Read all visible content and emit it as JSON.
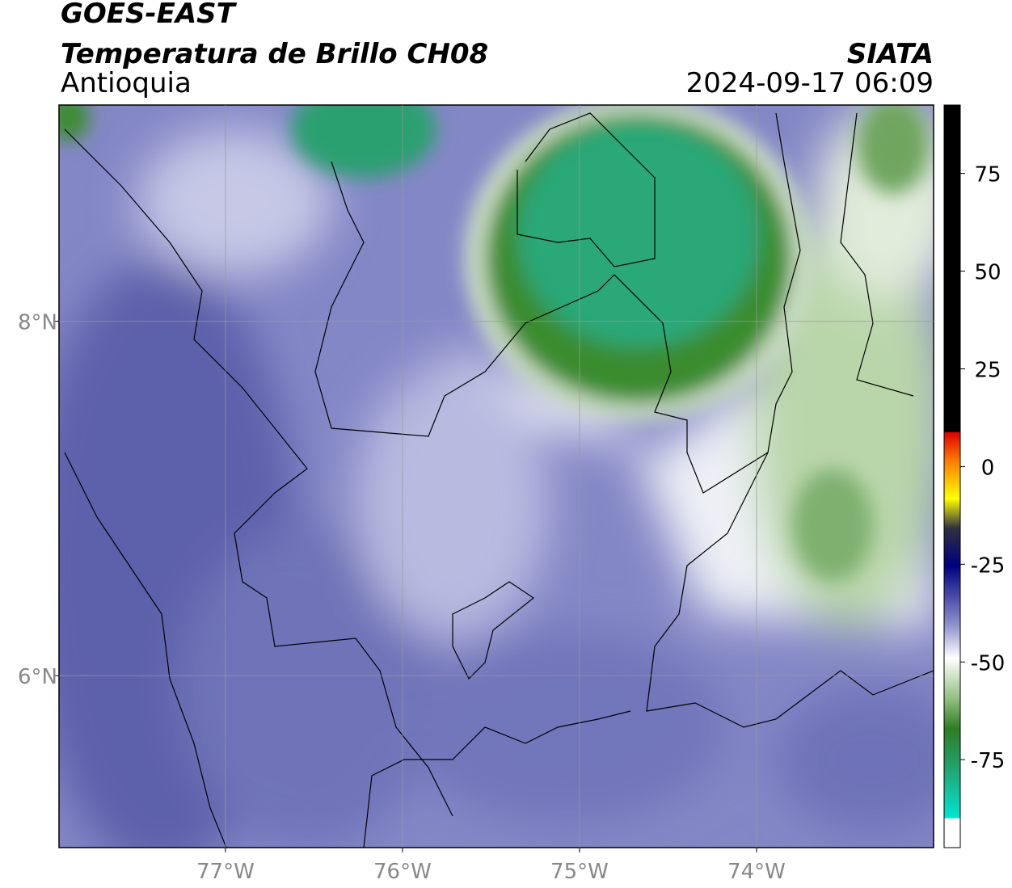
{
  "chart_data": {
    "type": "map",
    "title": "GOES-EAST",
    "subtitle": "Temperatura de Brillo CH08",
    "region": "Antioquia",
    "source": "SIATA",
    "timestamp": "2024-09-17 06:09",
    "xlim": [
      -77.94,
      -73.0
    ],
    "ylim": [
      5.03,
      9.22
    ],
    "xticks": [
      {
        "value": -77,
        "label": "77°W"
      },
      {
        "value": -76,
        "label": "76°W"
      },
      {
        "value": -75,
        "label": "75°W"
      },
      {
        "value": -74,
        "label": "74°W"
      }
    ],
    "yticks": [
      {
        "value": 6,
        "label": "6°N"
      },
      {
        "value": 8,
        "label": "8°N"
      }
    ],
    "grid": true,
    "colorbar": {
      "lim": [
        -97.5,
        92.5
      ],
      "ticks": [
        -75,
        -50,
        -25,
        0,
        25,
        50,
        75
      ]
    }
  }
}
